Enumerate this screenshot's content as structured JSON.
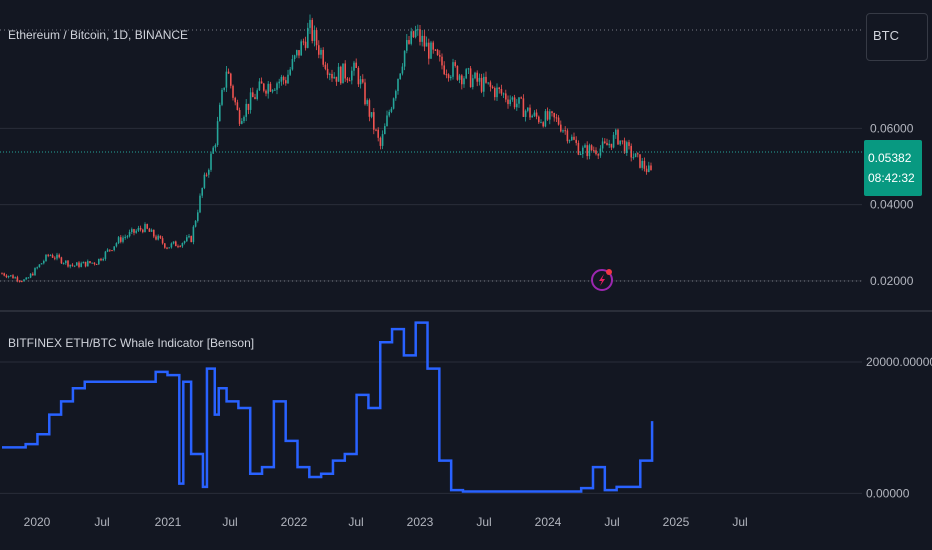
{
  "header": {
    "symbol_title": "Ethereum / Bitcoin, 1D, BINANCE",
    "currency": "BTC"
  },
  "price_tag": {
    "price": "0.05382",
    "countdown": "08:42:32",
    "color": "#089981"
  },
  "colors": {
    "background": "#131722",
    "grid": "#2a2e39",
    "up_candle": "#26a69a",
    "down_candle": "#ef5350",
    "indicator_line": "#2962ff",
    "event_icon": "#9c27b0"
  },
  "chart_data": [
    {
      "type": "line",
      "title": "Ethereum / Bitcoin, 1D, BINANCE",
      "x_ticks": [
        "2020",
        "Jul",
        "2021",
        "Jul",
        "2022",
        "Jul",
        "2023",
        "Jul",
        "2024",
        "Jul",
        "2025",
        "Jul"
      ],
      "y_ticks": [
        "0.02000",
        "0.04000",
        "0.06000"
      ],
      "ylim": [
        0.015,
        0.09
      ],
      "last_price": 0.05382,
      "series": [
        {
          "x": [
            "2019-10",
            "2019-12",
            "2020-02",
            "2020-04",
            "2020-06",
            "2020-08",
            "2020-10",
            "2020-12",
            "2021-02",
            "2021-03",
            "2021-04",
            "2021-05",
            "2021-06",
            "2021-08",
            "2021-10",
            "2021-12",
            "2022-02",
            "2022-04",
            "2022-06",
            "2022-08",
            "2022-09",
            "2022-11",
            "2023-01",
            "2023-03",
            "2023-05",
            "2023-07",
            "2023-09",
            "2023-11",
            "2024-01",
            "2024-02",
            "2024-03",
            "2024-04",
            "2024-05"
          ],
          "values": [
            0.022,
            0.02,
            0.027,
            0.024,
            0.025,
            0.031,
            0.034,
            0.029,
            0.031,
            0.045,
            0.056,
            0.076,
            0.063,
            0.071,
            0.073,
            0.086,
            0.074,
            0.075,
            0.055,
            0.08,
            0.085,
            0.077,
            0.074,
            0.071,
            0.068,
            0.063,
            0.062,
            0.054,
            0.055,
            0.058,
            0.054,
            0.051,
            0.048
          ]
        }
      ]
    },
    {
      "type": "line",
      "title": "BITFINEX ETH/BTC Whale Indicator [Benson]",
      "y_ticks": [
        "0.00000",
        "20000.00000"
      ],
      "ylim": [
        -1000,
        27000
      ],
      "series": [
        {
          "x": [
            "2019-10",
            "2019-11",
            "2019-12",
            "2020-01",
            "2020-02",
            "2020-03",
            "2020-04",
            "2020-05",
            "2020-06",
            "2020-08",
            "2020-10",
            "2020-11",
            "2020-12",
            "2021-01",
            "2021-01",
            "2021-02",
            "2021-03",
            "2021-03",
            "2021-04",
            "2021-04",
            "2021-05",
            "2021-06",
            "2021-07",
            "2021-08",
            "2021-09",
            "2021-10",
            "2021-11",
            "2021-12",
            "2022-01",
            "2022-02",
            "2022-03",
            "2022-04",
            "2022-05",
            "2022-06",
            "2022-07",
            "2022-08",
            "2022-09",
            "2022-10",
            "2022-11",
            "2022-12",
            "2023-01",
            "2023-03",
            "2023-06",
            "2023-09",
            "2023-11",
            "2023-12",
            "2024-01",
            "2024-02",
            "2024-03",
            "2024-04",
            "2024-05"
          ],
          "values": [
            7000,
            7000,
            7500,
            9000,
            12000,
            14000,
            16000,
            17000,
            17000,
            17000,
            17000,
            18500,
            18000,
            1500,
            17000,
            6000,
            1000,
            19000,
            12000,
            16000,
            14000,
            13000,
            3000,
            4000,
            14000,
            8000,
            4000,
            2500,
            3000,
            5000,
            6000,
            15000,
            13000,
            23000,
            25000,
            21000,
            26000,
            19000,
            5000,
            500,
            300,
            300,
            300,
            300,
            800,
            4000,
            500,
            1000,
            1000,
            5000,
            11000
          ]
        }
      ]
    }
  ]
}
